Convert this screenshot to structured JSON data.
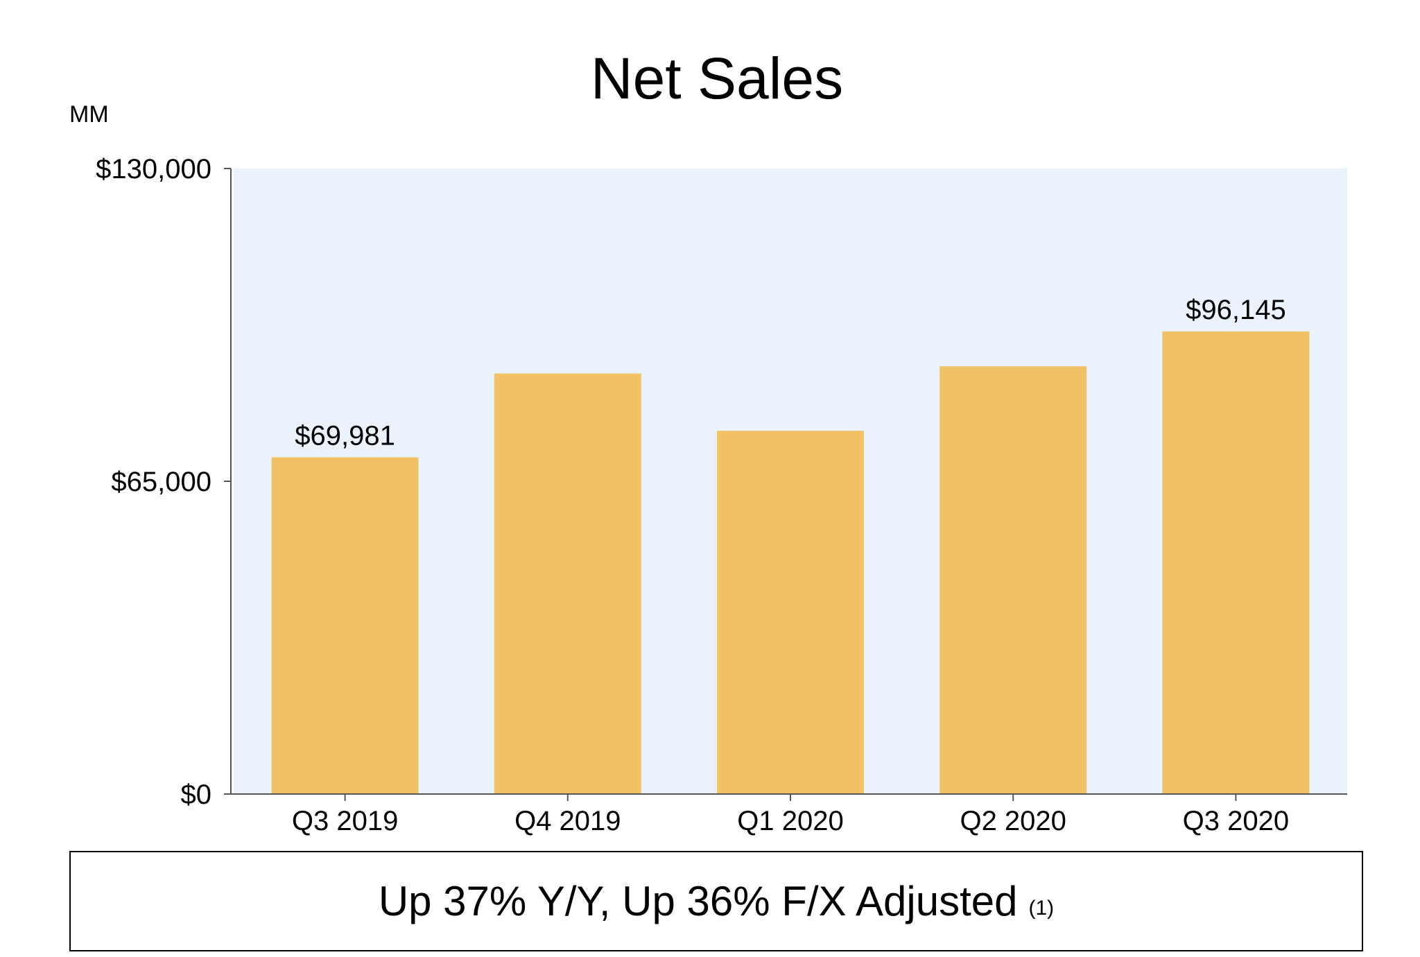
{
  "chart_data": {
    "type": "bar",
    "title": "Net Sales",
    "unit_label": "MM",
    "categories": [
      "Q3 2019",
      "Q4 2019",
      "Q1 2020",
      "Q2 2020",
      "Q3 2020"
    ],
    "values": [
      69981,
      87400,
      75500,
      88900,
      96145
    ],
    "data_labels": [
      "$69,981",
      "",
      "",
      "",
      "$96,145"
    ],
    "ylim": [
      0,
      130000
    ],
    "yticks": [
      0,
      65000,
      130000
    ],
    "ytick_labels": [
      "$0",
      "$65,000",
      "$130,000"
    ],
    "grid": false,
    "legend": "none",
    "xlabel": "",
    "ylabel": ""
  },
  "colors": {
    "bar": "#F0C165",
    "plot_background": "#EAF2FC",
    "axis": "#555555",
    "text": "#000000"
  },
  "footer": {
    "text": "Up 37% Y/Y, Up 36% F/X Adjusted",
    "note": "(1)"
  }
}
